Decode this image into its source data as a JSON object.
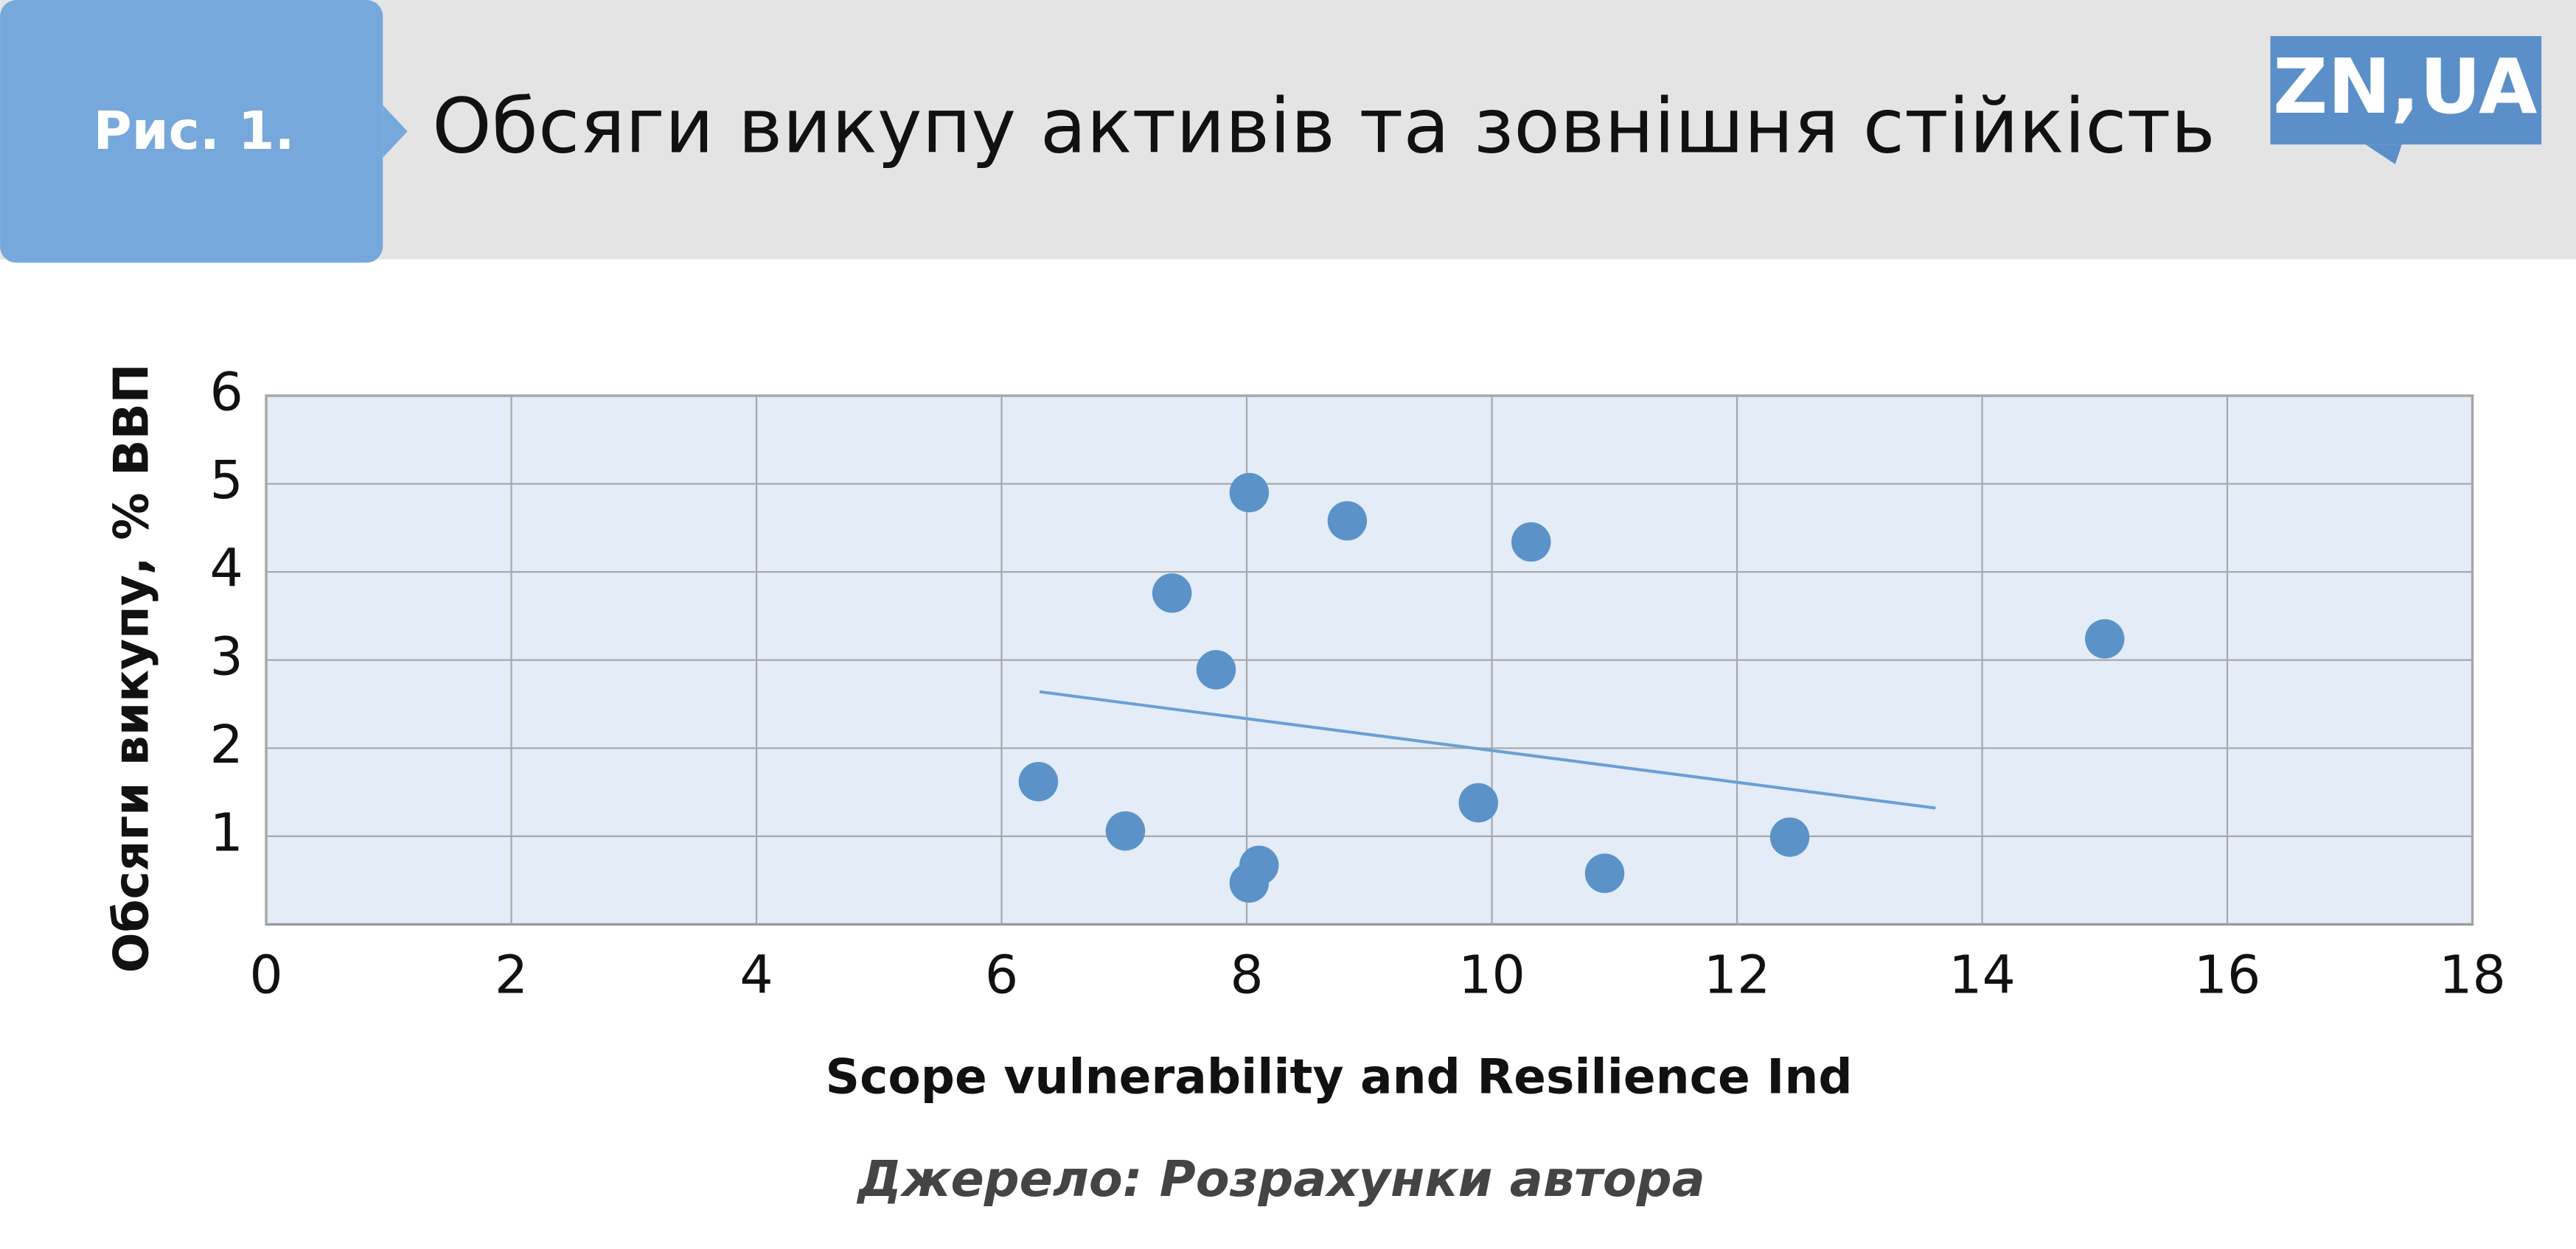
{
  "badge": "Рис. 1.",
  "logo": "ZN,UA",
  "source": "Джерело: Розрахунки автора",
  "chart_data": {
    "type": "scatter",
    "title": "Обсяги викупу активів та зовнішня стійкість",
    "x_label": "Scope vulnerability and Resilience Ind",
    "y_label": "Обсяги викупу, % ВВП",
    "color": "#5b93c9",
    "x": [
      8.02,
      8.82,
      10.32,
      7.39,
      7.75,
      15.0,
      6.3,
      7.01,
      9.89,
      12.43,
      10.92,
      8.1,
      8.02
    ],
    "values": [
      4.9,
      4.58,
      4.34,
      3.76,
      2.89,
      3.24,
      1.62,
      1.06,
      1.38,
      0.99,
      0.58,
      0.67,
      0.47
    ],
    "trendline": {
      "x": [
        6.31,
        13.62
      ],
      "y": [
        2.64,
        1.32
      ],
      "color": "#6a9fd4"
    },
    "xlim": [
      0,
      18
    ],
    "xticks": [
      0,
      2,
      4,
      6,
      8,
      10,
      12,
      14,
      16,
      18
    ],
    "ylim": [
      0,
      6
    ],
    "yticks": [
      1,
      2,
      3,
      4,
      5,
      6
    ],
    "grid": true
  }
}
